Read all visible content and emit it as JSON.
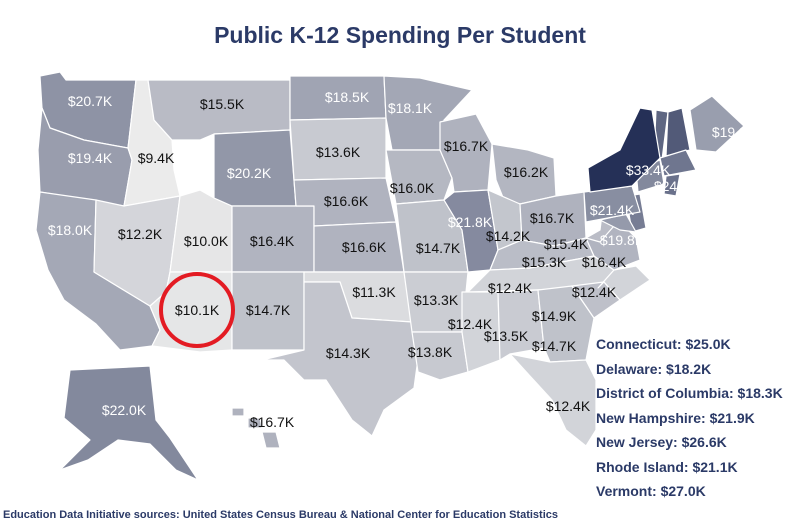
{
  "title": "Public K-12 Spending Per Student",
  "source": "Education Data Initiative sources: United States Census Bureau & National Center for Education Statistics",
  "colors": {
    "dark": "#253057",
    "light": "#ebebeb",
    "highlight_ring": "#e31b23",
    "title": "#2b3a67"
  },
  "scale": {
    "min": 9.4,
    "max": 33.4
  },
  "states": [
    {
      "id": "WA",
      "label": "$20.7K",
      "value": 20.7
    },
    {
      "id": "OR",
      "label": "$19.4K",
      "value": 19.4
    },
    {
      "id": "CA",
      "label": "$18.0K",
      "value": 18.0
    },
    {
      "id": "ID",
      "label": "$9.4K",
      "value": 9.4
    },
    {
      "id": "NV",
      "label": "$12.2K",
      "value": 12.2
    },
    {
      "id": "UT",
      "label": "$10.0K",
      "value": 10.0
    },
    {
      "id": "AZ",
      "label": "$10.1K",
      "value": 10.1
    },
    {
      "id": "MT",
      "label": "$15.5K",
      "value": 15.5
    },
    {
      "id": "WY",
      "label": "$20.2K",
      "value": 20.2
    },
    {
      "id": "CO",
      "label": "$16.4K",
      "value": 16.4
    },
    {
      "id": "NM",
      "label": "$14.7K",
      "value": 14.7
    },
    {
      "id": "ND",
      "label": "$18.5K",
      "value": 18.5
    },
    {
      "id": "SD",
      "label": "$13.6K",
      "value": 13.6
    },
    {
      "id": "NE",
      "label": "$16.6K",
      "value": 16.6
    },
    {
      "id": "KS",
      "label": "$16.6K",
      "value": 16.6
    },
    {
      "id": "OK",
      "label": "$11.3K",
      "value": 11.3
    },
    {
      "id": "TX",
      "label": "$14.3K",
      "value": 14.3
    },
    {
      "id": "MN",
      "label": "$18.1K",
      "value": 18.1
    },
    {
      "id": "IA",
      "label": "$16.0K",
      "value": 16.0
    },
    {
      "id": "MO",
      "label": "$14.7K",
      "value": 14.7
    },
    {
      "id": "AR",
      "label": "$13.3K",
      "value": 13.3
    },
    {
      "id": "LA",
      "label": "$13.8K",
      "value": 13.8
    },
    {
      "id": "WI",
      "label": "$16.7K",
      "value": 16.7
    },
    {
      "id": "IL",
      "label": "$21.8K",
      "value": 21.8
    },
    {
      "id": "MI",
      "label": "$16.2K",
      "value": 16.2
    },
    {
      "id": "IN",
      "label": "$14.2K",
      "value": 14.2
    },
    {
      "id": "OH",
      "label": "$16.7K",
      "value": 16.7
    },
    {
      "id": "KY",
      "label": "$15.3K",
      "value": 15.3
    },
    {
      "id": "TN",
      "label": "$12.4K",
      "value": 12.4
    },
    {
      "id": "MS",
      "label": "$12.4K",
      "value": 12.4
    },
    {
      "id": "AL",
      "label": "$13.5K",
      "value": 13.5
    },
    {
      "id": "GA",
      "label": "$14.7K",
      "value": 14.7
    },
    {
      "id": "FL",
      "label": "$12.4K",
      "value": 12.4
    },
    {
      "id": "SC",
      "label": "$14.9K",
      "value": 14.9
    },
    {
      "id": "NC",
      "label": "$12.4K",
      "value": 12.4
    },
    {
      "id": "VA",
      "label": "$16.4K",
      "value": 16.4
    },
    {
      "id": "WV",
      "label": "$15.4K",
      "value": 15.4
    },
    {
      "id": "MD",
      "label": "$19.8K",
      "value": 19.8
    },
    {
      "id": "PA",
      "label": "$21.4K",
      "value": 21.4
    },
    {
      "id": "NY",
      "label": "$33.4K",
      "value": 33.4
    },
    {
      "id": "MA",
      "label": "$24.4K",
      "value": 24.4
    },
    {
      "id": "ME",
      "label": "$19.3K",
      "value": 19.3
    },
    {
      "id": "AK",
      "label": "$22.0K",
      "value": 22.0
    },
    {
      "id": "HI",
      "label": "$16.7K",
      "value": 16.7
    }
  ],
  "small_states": [
    {
      "label": "Connecticut: $25.0K",
      "value": 25.0
    },
    {
      "label": "Delaware: $18.2K",
      "value": 18.2
    },
    {
      "label": "District of Columbia: $18.3K",
      "value": 18.3
    },
    {
      "label": "New Hampshire: $21.9K",
      "value": 21.9
    },
    {
      "label": "New Jersey: $26.6K",
      "value": 26.6
    },
    {
      "label": "Rhode Island: $21.1K",
      "value": 21.1
    },
    {
      "label": "Vermont: $27.0K",
      "value": 27.0
    }
  ],
  "highlighted_state": "AZ"
}
